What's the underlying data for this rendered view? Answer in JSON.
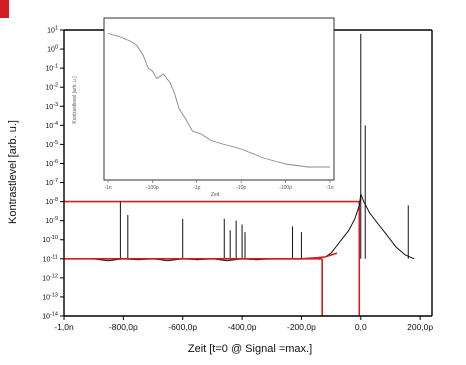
{
  "chart_data": [
    {
      "type": "line",
      "title": "",
      "xlabel": "Zeit [t=0 @ Signal =max.]",
      "ylabel": "Kontrastlevel [arb. u.]",
      "x_unit": "ps",
      "xlim": [
        -1000,
        240
      ],
      "y_scale": "log",
      "ylim_exp": [
        -14,
        1
      ],
      "x_ticks": [
        {
          "value": -1000,
          "label": "-1,0n"
        },
        {
          "value": -800,
          "label": "-800,0p"
        },
        {
          "value": -600,
          "label": "-600,0p"
        },
        {
          "value": -400,
          "label": "-400,0p"
        },
        {
          "value": -200,
          "label": "-200,0p"
        },
        {
          "value": 0,
          "label": "0,0"
        },
        {
          "value": 200,
          "label": "200,0p"
        }
      ],
      "y_ticks": [
        {
          "exp": 1,
          "label": "10^1"
        },
        {
          "exp": 0,
          "label": "10^0"
        },
        {
          "exp": -1,
          "label": "10^-1"
        },
        {
          "exp": -2,
          "label": "10^-2"
        },
        {
          "exp": -3,
          "label": "10^-3"
        },
        {
          "exp": -4,
          "label": "10^-4"
        },
        {
          "exp": -5,
          "label": "10^-5"
        },
        {
          "exp": -6,
          "label": "10^-6"
        },
        {
          "exp": -7,
          "label": "10^-7"
        },
        {
          "exp": -8,
          "label": "10^-8"
        },
        {
          "exp": -9,
          "label": "10^-9"
        },
        {
          "exp": -10,
          "label": "10^-10"
        },
        {
          "exp": -11,
          "label": "10^-11"
        },
        {
          "exp": -12,
          "label": "10^-12"
        },
        {
          "exp": -13,
          "label": "10^-13"
        },
        {
          "exp": -14,
          "label": "10^-14"
        }
      ],
      "series": [
        {
          "color": "#111111",
          "points_log10": [
            [
              -905,
              -11.0
            ],
            [
              -850,
              -11.1
            ],
            [
              -800,
              -11.0
            ],
            [
              -750,
              -11.05
            ],
            [
              -700,
              -11.0
            ],
            [
              -650,
              -11.1
            ],
            [
              -600,
              -11.0
            ],
            [
              -550,
              -11.05
            ],
            [
              -500,
              -11.0
            ],
            [
              -450,
              -11.1
            ],
            [
              -400,
              -11.0
            ],
            [
              -350,
              -11.05
            ],
            [
              -300,
              -11.0
            ],
            [
              -250,
              -11.0
            ],
            [
              -200,
              -11.0
            ],
            [
              -150,
              -10.95
            ],
            [
              -120,
              -10.9
            ],
            [
              -100,
              -10.7
            ],
            [
              -80,
              -10.3
            ],
            [
              -60,
              -9.9
            ],
            [
              -40,
              -9.5
            ],
            [
              -20,
              -8.9
            ],
            [
              -5,
              -8.2
            ],
            [
              0,
              -7.6
            ],
            [
              10,
              -8.0
            ],
            [
              30,
              -8.6
            ],
            [
              60,
              -9.2
            ],
            [
              90,
              -9.8
            ],
            [
              120,
              -10.4
            ],
            [
              150,
              -10.8
            ],
            [
              180,
              -11.0
            ]
          ],
          "spikes_log10": [
            [
              -810,
              -8.0
            ],
            [
              -785,
              -8.7
            ],
            [
              -600,
              -8.9
            ],
            [
              -460,
              -8.9
            ],
            [
              -440,
              -9.5
            ],
            [
              -420,
              -9.0
            ],
            [
              -400,
              -9.2
            ],
            [
              -390,
              -9.6
            ],
            [
              -230,
              -9.3
            ],
            [
              -200,
              -9.6
            ],
            [
              0,
              0.8
            ],
            [
              15,
              -4.0
            ],
            [
              160,
              -8.2
            ]
          ]
        },
        {
          "color": "#d21d23",
          "points_log10": [
            [
              -905,
              -11.0
            ],
            [
              -800,
              -11.0
            ],
            [
              -700,
              -11.0
            ],
            [
              -600,
              -11.0
            ],
            [
              -500,
              -11.0
            ],
            [
              -400,
              -11.0
            ],
            [
              -300,
              -11.0
            ],
            [
              -200,
              -11.0
            ],
            [
              -150,
              -10.95
            ],
            [
              -120,
              -10.9
            ],
            [
              -100,
              -10.8
            ],
            [
              -80,
              -10.7
            ]
          ]
        }
      ],
      "reference_lines": [
        {
          "orientation": "horizontal",
          "log10_y": -8.0,
          "x_range": [
            -1000,
            -5
          ],
          "color": "#d21d23"
        },
        {
          "orientation": "horizontal",
          "log10_y": -11.0,
          "x_range": [
            -1000,
            -130
          ],
          "color": "#d21d23"
        },
        {
          "orientation": "vertical",
          "x": -130,
          "log10_y_range": [
            -14,
            -11.0
          ],
          "color": "#d21d23"
        },
        {
          "orientation": "vertical",
          "x": -5,
          "log10_y_range": [
            -14,
            -8.0
          ],
          "color": "#d21d23"
        }
      ],
      "grid": false
    },
    {
      "type": "line",
      "title": "",
      "note": "inset",
      "xlabel": "Zeit",
      "ylabel": "Kontrastlevel [arb. u.]",
      "y_scale": "log",
      "x_ticks_labels": [
        "-1n",
        "-100p",
        "-1p",
        "-10p",
        "-100p",
        "-1n"
      ],
      "series": [
        {
          "color": "#888888",
          "points_rel": [
            [
              0.0,
              0.05
            ],
            [
              0.05,
              0.07
            ],
            [
              0.1,
              0.1
            ],
            [
              0.13,
              0.13
            ],
            [
              0.16,
              0.2
            ],
            [
              0.18,
              0.28
            ],
            [
              0.2,
              0.3
            ],
            [
              0.22,
              0.35
            ],
            [
              0.25,
              0.32
            ],
            [
              0.28,
              0.38
            ],
            [
              0.3,
              0.45
            ],
            [
              0.32,
              0.55
            ],
            [
              0.35,
              0.62
            ],
            [
              0.38,
              0.7
            ],
            [
              0.42,
              0.72
            ],
            [
              0.46,
              0.76
            ],
            [
              0.5,
              0.78
            ],
            [
              0.55,
              0.8
            ],
            [
              0.6,
              0.82
            ],
            [
              0.65,
              0.85
            ],
            [
              0.7,
              0.88
            ],
            [
              0.75,
              0.9
            ],
            [
              0.8,
              0.92
            ],
            [
              0.85,
              0.93
            ],
            [
              0.9,
              0.94
            ],
            [
              1.0,
              0.94
            ]
          ]
        }
      ]
    }
  ]
}
